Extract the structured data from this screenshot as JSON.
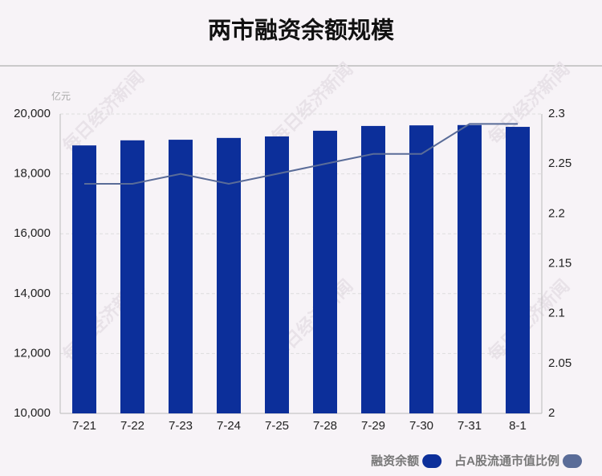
{
  "chart_data": {
    "type": "bar",
    "title": "两市融资余额规模",
    "y_unit": "亿元",
    "watermark": "每日经济新闻",
    "categories": [
      "7-21",
      "7-22",
      "7-23",
      "7-24",
      "7-25",
      "7-28",
      "7-29",
      "7-30",
      "7-31",
      "8-1"
    ],
    "series": [
      {
        "name": "融资余额",
        "type": "bar",
        "color": "#0c2f9a",
        "values": [
          18950,
          19120,
          19140,
          19200,
          19250,
          19440,
          19600,
          19620,
          19630,
          19570
        ]
      },
      {
        "name": "占A股流通市值比例",
        "type": "line",
        "axis": "y2",
        "color": "#5a6c98",
        "values": [
          2.23,
          2.23,
          2.24,
          2.23,
          2.24,
          2.25,
          2.26,
          2.26,
          2.29,
          2.29
        ]
      }
    ],
    "ylim": [
      10000,
      20000
    ],
    "yticks": [
      {
        "value": 10000,
        "label": "10,000"
      },
      {
        "value": 12000,
        "label": "12,000"
      },
      {
        "value": 14000,
        "label": "14,000"
      },
      {
        "value": 16000,
        "label": "16,000"
      },
      {
        "value": 18000,
        "label": "18,000"
      },
      {
        "value": 20000,
        "label": "20,000"
      }
    ],
    "y2lim": [
      2,
      2.3
    ],
    "y2ticks": [
      2,
      2.05,
      2.1,
      2.15,
      2.2,
      2.25,
      2.3
    ],
    "grid": true,
    "legend": "bottom-right"
  }
}
